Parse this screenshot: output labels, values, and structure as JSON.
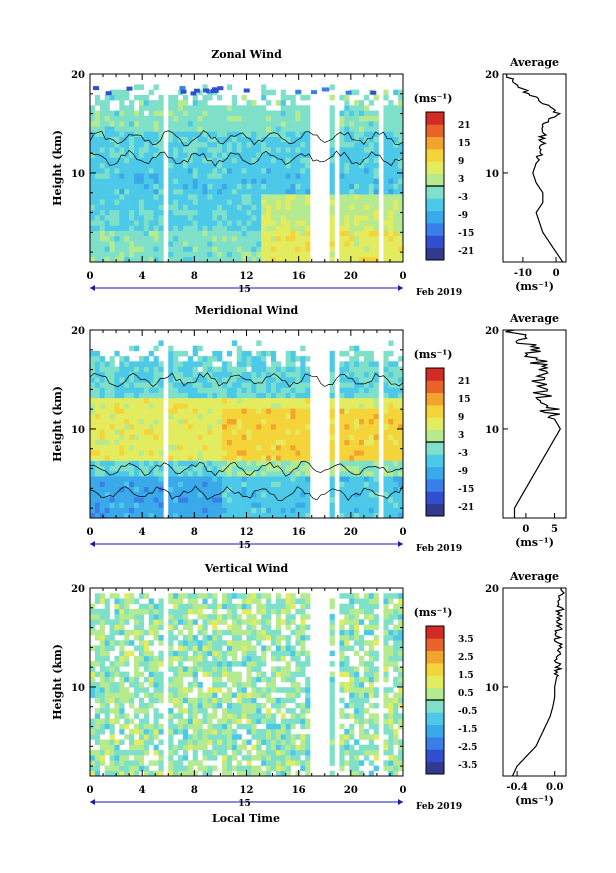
{
  "common": {
    "ylabel": "Height (km)",
    "y_ticks": [
      10,
      20
    ],
    "x_ticks": [
      "0",
      "4",
      "8",
      "12",
      "16",
      "20",
      "0"
    ],
    "day_label": "15",
    "month_year": "Feb 2019",
    "xlabel": "Local Time",
    "avg_title": "Average",
    "unit_cbar": "(ms⁻¹)",
    "unit_avg": "(ms⁻¹)"
  },
  "panels": [
    {
      "title": "Zonal Wind",
      "cbar_ticks": [
        "21",
        "15",
        "9",
        "3",
        "-3",
        "-9",
        "-15",
        "-21"
      ],
      "avg_ticks": [
        "-10",
        "0"
      ],
      "avg_xlim": [
        -16,
        3
      ],
      "colors": [
        "#323a8f",
        "#2f4fd0",
        "#3a7ee8",
        "#3aa9ea",
        "#4cc9e8",
        "#7ee0c8",
        "#b6ea8f",
        "#e3ec5f",
        "#f5d43a",
        "#f2a52e",
        "#e8632a",
        "#d42a26"
      ]
    },
    {
      "title": "Meridional Wind",
      "cbar_ticks": [
        "21",
        "15",
        "9",
        "3",
        "-3",
        "-9",
        "-15",
        "-21"
      ],
      "avg_ticks": [
        "0",
        "5"
      ],
      "avg_xlim": [
        -4,
        7
      ],
      "colors": [
        "#323a8f",
        "#2f4fd0",
        "#3a7ee8",
        "#3aa9ea",
        "#4cc9e8",
        "#7ee0c8",
        "#b6ea8f",
        "#e3ec5f",
        "#f5d43a",
        "#f2a52e",
        "#e8632a",
        "#d42a26"
      ]
    },
    {
      "title": "Vertical Wind",
      "cbar_ticks": [
        "3.5",
        "2.5",
        "1.5",
        "0.5",
        "-0.5",
        "-1.5",
        "-2.5",
        "-3.5"
      ],
      "avg_ticks": [
        "-0.4",
        "0.0"
      ],
      "avg_xlim": [
        -0.55,
        0.12
      ],
      "colors": [
        "#323a8f",
        "#2f4fd0",
        "#3a7ee8",
        "#3aa9ea",
        "#4cc9e8",
        "#7ee0c8",
        "#b6ea8f",
        "#e3ec5f",
        "#f5d43a",
        "#f2a52e",
        "#e8632a",
        "#d42a26"
      ]
    }
  ],
  "chart_data": [
    {
      "type": "heatmap",
      "title": "Zonal Wind",
      "xlabel": "",
      "ylabel": "Height (km)",
      "xlim": [
        0,
        24
      ],
      "ylim": [
        1,
        20
      ],
      "x_ticks": [
        0,
        4,
        8,
        12,
        16,
        20,
        24
      ],
      "y_ticks": [
        10,
        20
      ],
      "z_unit": "ms-1",
      "z_range": [
        -24,
        24
      ],
      "profile_heights": [
        1,
        2,
        3,
        4,
        5,
        6,
        7,
        8,
        9,
        10,
        11,
        12,
        13,
        14,
        15,
        16,
        17,
        18,
        19,
        20
      ],
      "avg_profile": [
        2,
        0,
        -2,
        -4,
        -5,
        -6,
        -4,
        -4,
        -6,
        -7,
        -6,
        -5,
        -4,
        -4,
        -3,
        1,
        -3,
        -8,
        -12,
        -15
      ]
    },
    {
      "type": "heatmap",
      "title": "Meridional Wind",
      "xlabel": "",
      "ylabel": "Height (km)",
      "xlim": [
        0,
        24
      ],
      "ylim": [
        1,
        20
      ],
      "x_ticks": [
        0,
        4,
        8,
        12,
        16,
        20,
        24
      ],
      "y_ticks": [
        10,
        20
      ],
      "z_unit": "ms-1",
      "z_range": [
        -24,
        24
      ],
      "profile_heights": [
        1,
        2,
        3,
        4,
        5,
        6,
        7,
        8,
        9,
        10,
        11,
        12,
        13,
        14,
        15,
        16,
        17,
        18,
        19,
        20
      ],
      "avg_profile": [
        -2,
        -2,
        -1,
        0,
        1,
        2,
        3,
        4,
        5,
        6,
        5,
        4,
        3,
        3,
        2,
        3,
        2,
        1,
        0,
        -2
      ]
    },
    {
      "type": "heatmap",
      "title": "Vertical Wind",
      "xlabel": "Local Time",
      "ylabel": "Height (km)",
      "xlim": [
        0,
        24
      ],
      "ylim": [
        1,
        20
      ],
      "x_ticks": [
        0,
        4,
        8,
        12,
        16,
        20,
        24
      ],
      "y_ticks": [
        10,
        20
      ],
      "z_unit": "ms-1",
      "z_range": [
        -4,
        4
      ],
      "profile_heights": [
        1,
        2,
        3,
        4,
        5,
        6,
        7,
        8,
        9,
        10,
        11,
        12,
        13,
        14,
        15,
        16,
        17,
        18,
        19,
        20
      ],
      "avg_profile": [
        -0.45,
        -0.4,
        -0.3,
        -0.2,
        -0.15,
        -0.1,
        -0.05,
        -0.02,
        0.0,
        0.0,
        0.02,
        0.03,
        0.02,
        0.04,
        0.03,
        0.05,
        0.04,
        0.06,
        0.05,
        0.07
      ]
    }
  ]
}
